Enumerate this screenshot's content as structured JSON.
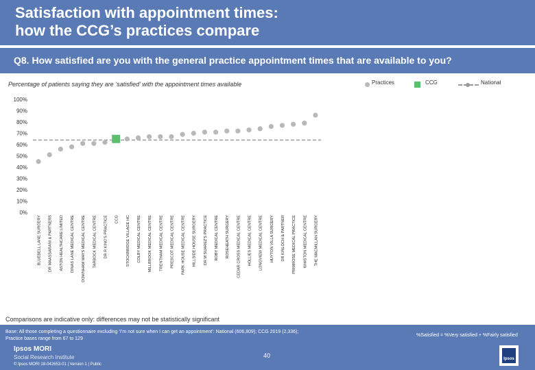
{
  "header": {
    "title_line1": "Satisfaction with appointment times:",
    "title_line2": "how the CCG’s practices compare"
  },
  "question": "Q8. How satisfied are you with the general practice appointment times that are available to you?",
  "subtitle": "Percentage of patients saying they are ‘satisfied’ with the appointment times available",
  "legend": {
    "practices": "Practices",
    "ccg": "CCG",
    "national": "National"
  },
  "colors": {
    "header_bg": "#5a7ab5",
    "practice_point": "#b8b8b8",
    "ccg_square": "#5bbf6e",
    "national_line": "#9a9a9a"
  },
  "chart_data": {
    "type": "scatter",
    "y_ticks": [
      "0%",
      "10%",
      "20%",
      "30%",
      "40%",
      "50%",
      "60%",
      "70%",
      "80%",
      "90%",
      "100%"
    ],
    "ylim": [
      0,
      100
    ],
    "national_value": 64,
    "ccg_label": "CCG",
    "categories": [
      "BLUEBELL LANE SURGERY",
      "DR MAASSARANI & PARTNERS",
      "ASTON HEALTHCARE LIMITED",
      "DINAS LANE MEDICAL CENTRE",
      "DOWNHAM MAYS MEDICAL CENTRE",
      "TARBOCK MEDICAL CENTRE",
      "DR R KING'S PRACTICE",
      "CCG",
      "STOCKBRIDGE VILLAGE HC",
      "COLBY MEDICAL CENTRE",
      "MILLBROOK MEDICAL CENTRE",
      "TRENTHAM MEDICAL CENTRE",
      "PRESCOT MEDICAL CENTRE",
      "PARK HOUSE MEDICAL CENTRE",
      "HILLSIDE HOUSE SURGERY",
      "DR M SUAREZ'S PRACTICE",
      "ROBY MEDICAL CENTRE",
      "ROSEHEATH SURGERY",
      "CEDAR CROSS MEDICAL CENTRE",
      "HOLLIES MEDICAL CENTRE",
      "LONGVIEW MEDICAL CENTRE",
      "HUYTON VILLA SURGERY",
      "DR KINLOCH & PARTNER",
      "PRIMROSE MEDICAL PRACTICE",
      "WHISTON MEDICAL CENTRE",
      "THE MACMILLAN SURGERY"
    ],
    "values": [
      45,
      51,
      56,
      58,
      61,
      61,
      62,
      65,
      65,
      66,
      67,
      67,
      67,
      69,
      70,
      71,
      71,
      72,
      72,
      73,
      74,
      76,
      77,
      78,
      79,
      86
    ]
  },
  "note": "Comparisons are indicative only: differences may not be statistically significant",
  "footer": {
    "base_line1": "Base: All those completing a questionnaire excluding ‘I’m not sure when I can get an appointment’: National (606,809); CCG 2019 (2,336);",
    "base_line2": "Practice bases range from 67 to 129",
    "satisfied_def": "%Satisfied = %Very satisfied + %Fairly satisfied",
    "brand_name": "Ipsos MORI",
    "brand_sub": "Social Research Institute",
    "copyright": "© Ipsos MORI     18-042653-01 | Version 1 | Public",
    "page_number": "40",
    "logo_text": "Ipsos"
  }
}
